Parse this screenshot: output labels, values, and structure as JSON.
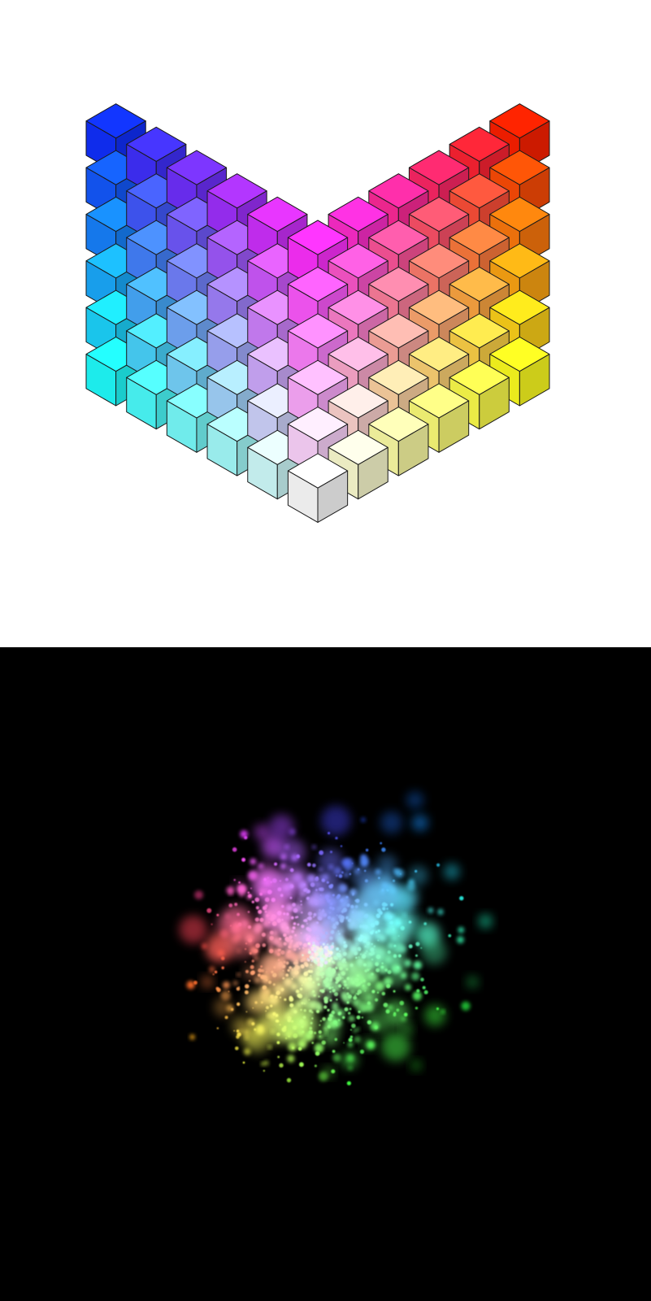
{
  "images": {
    "top": {
      "subject": "rgb-color-cube-isometric-mosaic",
      "background": "#ffffff",
      "grid_steps": 6
    },
    "bottom": {
      "subject": "rgb-color-particle-cloud",
      "background": "#000000"
    }
  },
  "cube_corners": {
    "white": "#ffffff",
    "black": "#000000",
    "red": "#ff2000",
    "green": "#20ff20",
    "blue": "#1030ff",
    "cyan": "#20ffff",
    "magenta": "#ff30ff",
    "yellow": "#ffff20"
  }
}
